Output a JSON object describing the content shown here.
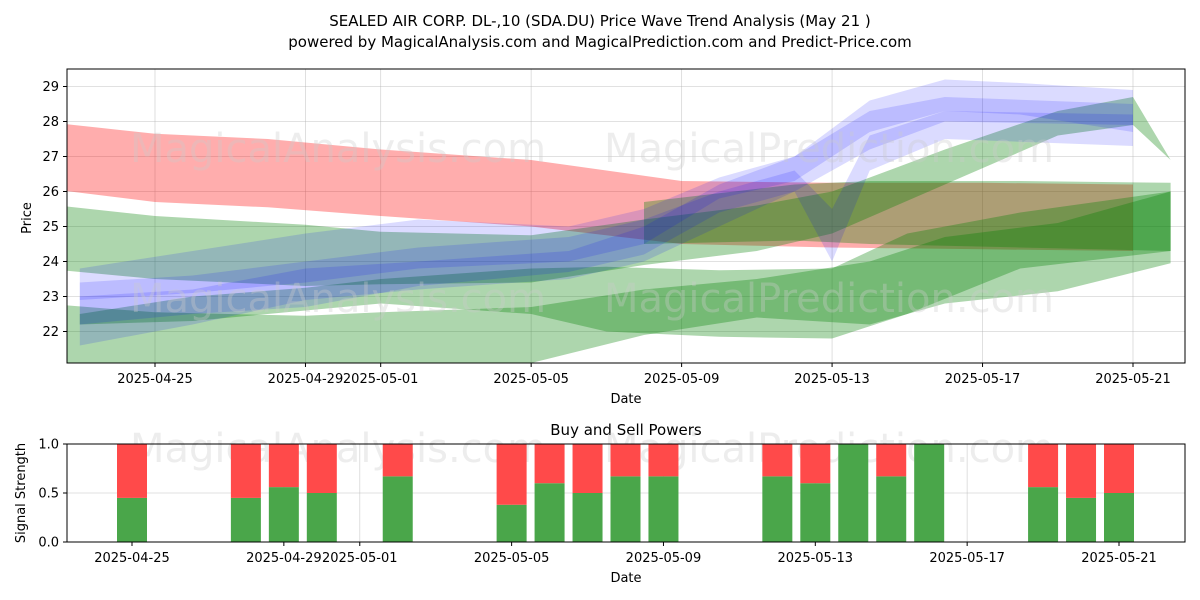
{
  "figure": {
    "title_line1": "SEALED AIR CORP.  DL-,10 (SDA.DU) Price Wave Trend Analysis (May 21 )",
    "title_line2": "powered by MagicalAnalysis.com and MagicalPrediction.com and Predict-Price.com",
    "watermark_left": "MagicalAnalysis.com",
    "watermark_right": "MagicalPrediction.com"
  },
  "chart_data": [
    {
      "type": "area",
      "title": "",
      "xlabel": "Date",
      "ylabel": "Price",
      "x_range": [
        "2025-04-22",
        "2025-05-22"
      ],
      "ylim": [
        21.1,
        29.5
      ],
      "x_ticks": [
        "2025-04-25",
        "2025-04-29",
        "2025-05-01",
        "2025-05-05",
        "2025-05-09",
        "2025-05-13",
        "2025-05-17",
        "2025-05-21"
      ],
      "y_ticks": [
        22,
        23,
        24,
        25,
        26,
        27,
        28,
        29
      ],
      "grid": true,
      "colors": {
        "red": "#ff0000",
        "green": "#008000",
        "blue": "#0000ff"
      },
      "bands": [
        {
          "name": "red-band-1",
          "color": "red",
          "opacity": 0.32,
          "points": [
            [
              "2025-04-22",
              26.1,
              28.0
            ],
            [
              "2025-04-25",
              25.7,
              27.65
            ],
            [
              "2025-04-28",
              25.55,
              27.5
            ],
            [
              "2025-05-01",
              25.3,
              27.2
            ],
            [
              "2025-05-05",
              25.0,
              26.9
            ],
            [
              "2025-05-09",
              24.5,
              26.3
            ],
            [
              "2025-05-13",
              24.4,
              26.25
            ],
            [
              "2025-05-17",
              24.35,
              26.25
            ],
            [
              "2025-05-21",
              24.3,
              26.2
            ]
          ]
        },
        {
          "name": "green-band-1",
          "color": "green",
          "opacity": 0.32,
          "points": [
            [
              "2025-04-22",
              23.8,
              25.65
            ],
            [
              "2025-04-25",
              23.5,
              25.3
            ],
            [
              "2025-04-29",
              23.3,
              25.05
            ],
            [
              "2025-05-01",
              23.35,
              24.85
            ],
            [
              "2025-05-05",
              23.4,
              24.75
            ],
            [
              "2025-05-08",
              23.9,
              25.2
            ],
            [
              "2025-05-11",
              24.3,
              25.6
            ],
            [
              "2025-05-13",
              24.8,
              26.0
            ],
            [
              "2025-05-16",
              26.2,
              27.2
            ],
            [
              "2025-05-19",
              27.6,
              28.3
            ],
            [
              "2025-05-21",
              27.9,
              28.7
            ],
            [
              "2025-05-22",
              26.9,
              26.9
            ]
          ]
        },
        {
          "name": "green-band-2",
          "color": "green",
          "opacity": 0.32,
          "points": [
            [
              "2025-04-22",
              21.0,
              22.8
            ],
            [
              "2025-04-25",
              21.05,
              22.55
            ],
            [
              "2025-04-29",
              21.0,
              22.45
            ],
            [
              "2025-05-01",
              21.0,
              22.55
            ],
            [
              "2025-05-05",
              21.1,
              22.7
            ],
            [
              "2025-05-08",
              21.9,
              23.2
            ],
            [
              "2025-05-11",
              22.4,
              23.5
            ],
            [
              "2025-05-14",
              22.2,
              24.0
            ],
            [
              "2025-05-16",
              22.8,
              24.7
            ],
            [
              "2025-05-19",
              23.15,
              25.1
            ],
            [
              "2025-05-22",
              23.95,
              26.0
            ]
          ]
        },
        {
          "name": "green-band-3",
          "color": "green",
          "opacity": 0.32,
          "points": [
            [
              "2025-04-23",
              22.2,
              22.5
            ],
            [
              "2025-04-26",
              22.3,
              23.0
            ],
            [
              "2025-04-29",
              22.6,
              23.25
            ],
            [
              "2025-05-01",
              22.8,
              23.5
            ],
            [
              "2025-05-05",
              22.5,
              23.8
            ],
            [
              "2025-05-07",
              22.0,
              23.85
            ],
            [
              "2025-05-10",
              21.85,
              23.75
            ],
            [
              "2025-05-13",
              21.8,
              23.8
            ],
            [
              "2025-05-15",
              22.5,
              24.8
            ],
            [
              "2025-05-18",
              23.8,
              25.4
            ],
            [
              "2025-05-22",
              24.3,
              26.0
            ]
          ]
        },
        {
          "name": "olive-band",
          "color": "green",
          "opacity": 0.32,
          "points": [
            [
              "2025-05-08",
              24.5,
              25.7
            ],
            [
              "2025-05-12",
              24.6,
              26.2
            ],
            [
              "2025-05-14",
              24.5,
              26.3
            ],
            [
              "2025-05-18",
              24.4,
              26.3
            ],
            [
              "2025-05-22",
              24.3,
              26.25
            ]
          ]
        },
        {
          "name": "blue-band-1",
          "color": "blue",
          "opacity": 0.14,
          "points": [
            [
              "2025-04-23",
              22.9,
              23.8
            ],
            [
              "2025-04-26",
              23.1,
              24.3
            ],
            [
              "2025-04-29",
              23.4,
              24.8
            ],
            [
              "2025-05-02",
              23.8,
              25.2
            ],
            [
              "2025-05-06",
              24.0,
              25.0
            ],
            [
              "2025-05-08",
              24.5,
              25.5
            ],
            [
              "2025-05-10",
              25.8,
              26.4
            ],
            [
              "2025-05-12",
              26.3,
              27.0
            ],
            [
              "2025-05-14",
              27.7,
              28.6
            ],
            [
              "2025-05-16",
              28.3,
              29.2
            ],
            [
              "2025-05-18",
              28.2,
              29.1
            ],
            [
              "2025-05-21",
              27.7,
              28.9
            ]
          ]
        },
        {
          "name": "blue-band-2",
          "color": "blue",
          "opacity": 0.14,
          "points": [
            [
              "2025-04-23",
              22.2,
              23.4
            ],
            [
              "2025-04-26",
              22.5,
              23.6
            ],
            [
              "2025-04-29",
              22.7,
              24.0
            ],
            [
              "2025-05-02",
              23.3,
              24.4
            ],
            [
              "2025-05-06",
              23.7,
              24.7
            ],
            [
              "2025-05-08",
              24.2,
              25.2
            ],
            [
              "2025-05-10",
              25.4,
              26.0
            ],
            [
              "2025-05-12",
              26.0,
              26.6
            ],
            [
              "2025-05-13",
              24.0,
              25.5
            ],
            [
              "2025-05-14",
              26.6,
              27.6
            ],
            [
              "2025-05-16",
              27.5,
              28.3
            ],
            [
              "2025-05-21",
              27.3,
              28.2
            ]
          ]
        },
        {
          "name": "blue-band-3",
          "color": "blue",
          "opacity": 0.14,
          "points": [
            [
              "2025-04-23",
              21.6,
              23.0
            ],
            [
              "2025-04-26",
              22.2,
              23.2
            ],
            [
              "2025-04-29",
              22.9,
              23.8
            ],
            [
              "2025-05-02",
              23.2,
              24.0
            ],
            [
              "2025-05-06",
              23.5,
              24.3
            ],
            [
              "2025-05-08",
              24.0,
              25.0
            ],
            [
              "2025-05-10",
              25.0,
              26.2
            ],
            [
              "2025-05-12",
              26.0,
              27.0
            ],
            [
              "2025-05-14",
              27.2,
              28.3
            ],
            [
              "2025-05-16",
              28.0,
              28.7
            ],
            [
              "2025-05-21",
              27.9,
              28.5
            ]
          ]
        }
      ]
    },
    {
      "type": "bar",
      "title": "Buy and Sell Powers",
      "xlabel": "Date",
      "ylabel": "Signal Strength",
      "ylim": [
        0,
        1.0
      ],
      "y_ticks": [
        "0.0",
        "0.5",
        "1.0"
      ],
      "x_ticks": [
        "2025-04-25",
        "2025-04-29",
        "2025-05-01",
        "2025-05-05",
        "2025-05-09",
        "2025-05-13",
        "2025-05-17",
        "2025-05-21"
      ],
      "colors": {
        "buy": "#4aa64a",
        "sell": "#ff4a4a"
      },
      "categories": [
        "2025-04-25",
        "2025-04-28",
        "2025-04-29",
        "2025-04-30",
        "2025-05-02",
        "2025-05-05",
        "2025-05-06",
        "2025-05-07",
        "2025-05-08",
        "2025-05-09",
        "2025-05-12",
        "2025-05-13",
        "2025-05-14",
        "2025-05-15",
        "2025-05-16",
        "2025-05-19",
        "2025-05-20",
        "2025-05-21"
      ],
      "series": [
        {
          "name": "buy",
          "values": [
            0.45,
            0.45,
            0.56,
            0.5,
            0.67,
            0.38,
            0.6,
            0.5,
            0.67,
            0.67,
            0.67,
            0.6,
            1.0,
            0.67,
            1.0,
            0.56,
            0.45,
            0.5
          ]
        },
        {
          "name": "sell",
          "values": [
            0.55,
            0.55,
            0.44,
            0.5,
            0.33,
            0.62,
            0.4,
            0.5,
            0.33,
            0.33,
            0.33,
            0.4,
            0.0,
            0.33,
            0.0,
            0.44,
            0.55,
            0.5
          ]
        }
      ]
    }
  ]
}
